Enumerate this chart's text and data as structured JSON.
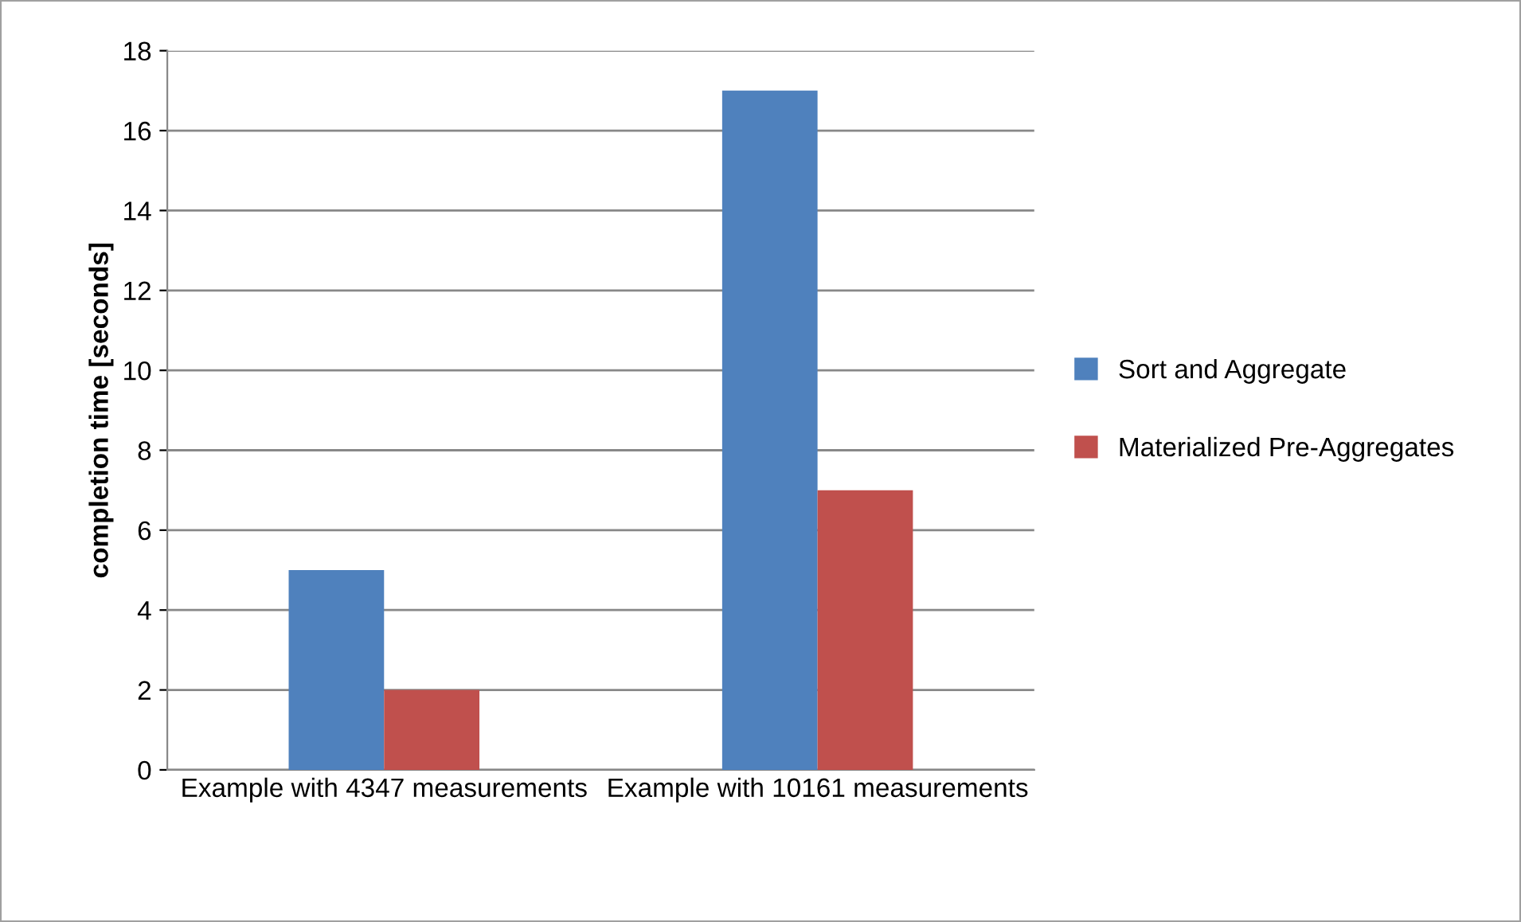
{
  "chart_data": {
    "type": "bar",
    "ylabel": "completion time [seconds]",
    "categories": [
      "Example with 4347 measurements",
      "Example with 10161 measurements"
    ],
    "series": [
      {
        "name": "Sort and Aggregate",
        "color": "#4f81bd",
        "values": [
          5,
          17
        ]
      },
      {
        "name": "Materialized Pre-Aggregates",
        "color": "#c0504d",
        "values": [
          2,
          7
        ]
      }
    ],
    "ylim": [
      0,
      18
    ],
    "yticks": [
      0,
      2,
      4,
      6,
      8,
      10,
      12,
      14,
      16,
      18
    ],
    "grid": "y",
    "legend": "right"
  }
}
